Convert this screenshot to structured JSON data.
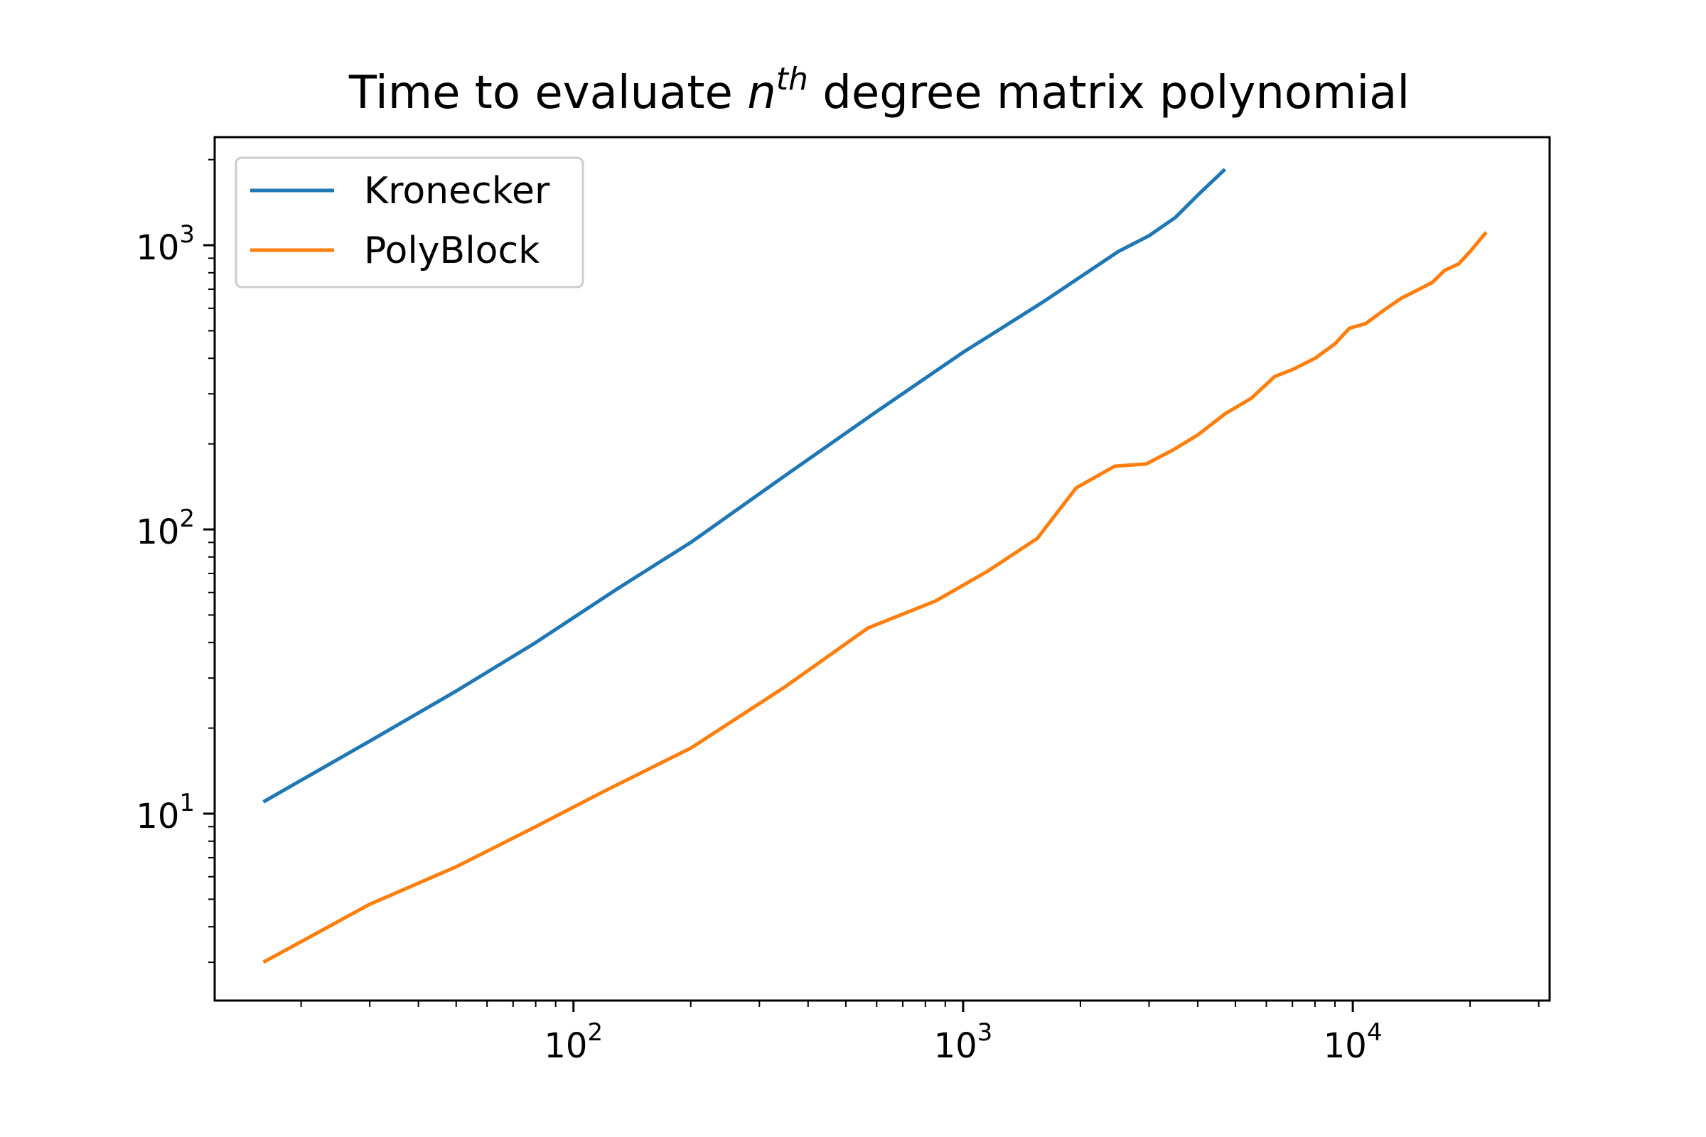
{
  "chart_data": {
    "type": "line",
    "title": {
      "prefix": "Time to evaluate ",
      "var": "n",
      "sup": "th",
      "suffix": " degree matrix polynomial"
    },
    "xlabel": "",
    "ylabel": "",
    "xscale": "log",
    "yscale": "log",
    "xlim": [
      12.0,
      32000
    ],
    "ylim": [
      2.2,
      2400
    ],
    "grid": false,
    "legend_position": "top-left",
    "x_ticks": [
      {
        "value": 100,
        "base": "10",
        "exp": "2"
      },
      {
        "value": 1000,
        "base": "10",
        "exp": "3"
      },
      {
        "value": 10000,
        "base": "10",
        "exp": "4"
      }
    ],
    "y_ticks": [
      {
        "value": 10,
        "base": "10",
        "exp": "1"
      },
      {
        "value": 100,
        "base": "10",
        "exp": "2"
      },
      {
        "value": 1000,
        "base": "10",
        "exp": "3"
      }
    ],
    "series": [
      {
        "name": "Kronecker",
        "color": "#1f77b4",
        "x": [
          16,
          30,
          50,
          80,
          130,
          200,
          350,
          600,
          1000,
          1600,
          2500,
          3000,
          3500,
          4000,
          4700
        ],
        "y": [
          11,
          18,
          27,
          40,
          62,
          90,
          155,
          260,
          420,
          630,
          950,
          1080,
          1250,
          1500,
          1850
        ]
      },
      {
        "name": "PolyBlock",
        "color": "#ff7f0e",
        "x": [
          16,
          30,
          50,
          80,
          120,
          200,
          350,
          570,
          850,
          1150,
          1550,
          1950,
          2450,
          2950,
          3450,
          4000,
          4700,
          5500,
          6300,
          7000,
          8000,
          9000,
          9800,
          10800,
          12000,
          13300,
          14500,
          16000,
          17200,
          18700,
          20000,
          22000
        ],
        "y": [
          3.0,
          4.8,
          6.5,
          9.0,
          12,
          17,
          28,
          45,
          56,
          71,
          93,
          140,
          167,
          170,
          190,
          215,
          255,
          290,
          345,
          365,
          400,
          450,
          510,
          530,
          590,
          650,
          690,
          740,
          815,
          860,
          950,
          1110
        ]
      }
    ]
  }
}
